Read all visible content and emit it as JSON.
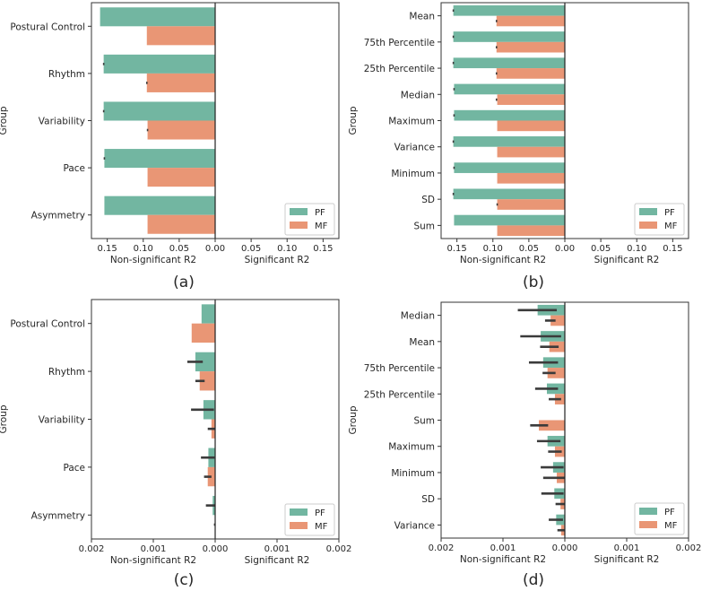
{
  "colors": {
    "PF": "#72b6a1",
    "MF": "#e99675",
    "errorbar": "#3b3b3b"
  },
  "chart_data": [
    {
      "type": "bar",
      "orientation": "horizontal",
      "panel_label": "(a)",
      "ylabel": "Group",
      "xlabel_left": "Non-significant R2",
      "xlabel_right": "Significant R2",
      "xlim": [
        -0.172,
        0.172
      ],
      "xticks": [
        -0.15,
        -0.1,
        -0.05,
        0.0,
        0.05,
        0.1,
        0.15
      ],
      "xtick_labels": [
        "0.15",
        "0.10",
        "0.05",
        "0.00",
        "0.05",
        "0.10",
        "0.15"
      ],
      "legend": {
        "entries": [
          "PF",
          "MF"
        ],
        "placement": "bottom-right"
      },
      "categories": [
        "Postural Control",
        "Rhythm",
        "Variability",
        "Pace",
        "Asymmetry"
      ],
      "series": [
        {
          "name": "PF",
          "side": "non-significant",
          "values": [
            0.16,
            0.155,
            0.155,
            0.154,
            0.154
          ],
          "errors": [
            null,
            [
              0.154,
              0.156
            ],
            [
              0.154,
              0.156
            ],
            [
              0.153,
              0.155
            ],
            null
          ]
        },
        {
          "name": "MF",
          "side": "non-significant",
          "values": [
            0.095,
            0.095,
            0.094,
            0.094,
            0.094
          ],
          "errors": [
            null,
            [
              0.094,
              0.096
            ],
            [
              0.093,
              0.095
            ],
            null,
            null
          ]
        }
      ]
    },
    {
      "type": "bar",
      "orientation": "horizontal",
      "panel_label": "(b)",
      "ylabel": "Group",
      "xlabel_left": "Non-significant R2",
      "xlabel_right": "Significant R2",
      "xlim": [
        -0.172,
        0.172
      ],
      "xticks": [
        -0.15,
        -0.1,
        -0.05,
        0.0,
        0.05,
        0.1,
        0.15
      ],
      "xtick_labels": [
        "0.15",
        "0.10",
        "0.05",
        "0.00",
        "0.05",
        "0.10",
        "0.15"
      ],
      "legend": {
        "entries": [
          "PF",
          "MF"
        ],
        "placement": "bottom-right"
      },
      "categories": [
        "Mean",
        "75th Percentile",
        "25th Percentile",
        "Median",
        "Maximum",
        "Variance",
        "Minimum",
        "SD",
        "Sum"
      ],
      "series": [
        {
          "name": "PF",
          "side": "non-significant",
          "values": [
            0.155,
            0.155,
            0.155,
            0.154,
            0.154,
            0.155,
            0.154,
            0.155,
            0.154
          ],
          "errors": [
            [
              0.154,
              0.156
            ],
            [
              0.154,
              0.156
            ],
            [
              0.154,
              0.156
            ],
            [
              0.153,
              0.155
            ],
            [
              0.153,
              0.155
            ],
            [
              0.154,
              0.156
            ],
            [
              0.153,
              0.155
            ],
            [
              0.154,
              0.156
            ],
            null
          ]
        },
        {
          "name": "MF",
          "side": "non-significant",
          "values": [
            0.095,
            0.095,
            0.095,
            0.094,
            0.094,
            0.094,
            0.094,
            0.094,
            0.094
          ],
          "errors": [
            [
              0.094,
              0.096
            ],
            [
              0.094,
              0.096
            ],
            [
              0.094,
              0.096
            ],
            [
              0.094,
              0.096
            ],
            null,
            null,
            null,
            [
              0.093,
              0.095
            ],
            null
          ]
        }
      ]
    },
    {
      "type": "bar",
      "orientation": "horizontal",
      "panel_label": "(c)",
      "ylabel": "Group",
      "xlabel_left": "Non-significant R2",
      "xlabel_right": "Significant R2",
      "xlim": [
        -0.002,
        0.002
      ],
      "xticks": [
        -0.002,
        -0.001,
        0.0,
        0.001,
        0.002
      ],
      "xtick_labels": [
        "0.002",
        "0.001",
        "0.000",
        "0.001",
        "0.002"
      ],
      "legend": {
        "entries": [
          "PF",
          "MF"
        ],
        "placement": "bottom-right"
      },
      "categories": [
        "Postural Control",
        "Rhythm",
        "Variability",
        "Pace",
        "Asymmetry"
      ],
      "series": [
        {
          "name": "PF",
          "side": "non-significant",
          "values": [
            0.00022,
            0.00032,
            0.00019,
            0.00011,
            4e-05
          ],
          "errors": [
            null,
            [
              0.0002,
              0.00045
            ],
            [
              2e-05,
              0.00039
            ],
            [
              1e-05,
              0.00023
            ],
            [
              0.0,
              0.00015
            ]
          ]
        },
        {
          "name": "MF",
          "side": "non-significant",
          "values": [
            0.00038,
            0.00025,
            6e-05,
            0.00012,
            5e-06
          ],
          "errors": [
            null,
            [
              0.00017,
              0.00032
            ],
            [
              0.0,
              0.00012
            ],
            [
              6e-05,
              0.00018
            ],
            [
              0.0,
              2e-05
            ]
          ]
        }
      ]
    },
    {
      "type": "bar",
      "orientation": "horizontal",
      "panel_label": "(d)",
      "ylabel": "Group",
      "xlabel_left": "Non-significant R2",
      "xlabel_right": "Significant R2",
      "xlim": [
        -0.002,
        0.002
      ],
      "xticks": [
        -0.002,
        -0.001,
        0.0,
        0.001,
        0.002
      ],
      "xtick_labels": [
        "0.002",
        "0.001",
        "0.000",
        "0.001",
        "0.002"
      ],
      "legend": {
        "entries": [
          "PF",
          "MF"
        ],
        "placement": "bottom-right"
      },
      "categories": [
        "Median",
        "Mean",
        "75th Percentile",
        "25th Percentile",
        "Sum",
        "Maximum",
        "Minimum",
        "SD",
        "Variance"
      ],
      "series": [
        {
          "name": "PF",
          "side": "non-significant",
          "values": [
            0.00044,
            0.00039,
            0.00035,
            0.00029,
            5e-06,
            0.00028,
            0.00019,
            0.00017,
            0.00014
          ],
          "errors": [
            [
              0.00013,
              0.00076
            ],
            [
              6e-05,
              0.00072
            ],
            [
              0.00011,
              0.00058
            ],
            [
              0.00011,
              0.00048
            ],
            null,
            [
              7e-05,
              0.00045
            ],
            [
              2e-05,
              0.00039
            ],
            [
              2e-05,
              0.00038
            ],
            [
              3e-05,
              0.00026
            ]
          ]
        },
        {
          "name": "MF",
          "side": "non-significant",
          "values": [
            0.00023,
            0.00025,
            0.00028,
            0.00016,
            0.00042,
            0.00016,
            0.00013,
            7e-05,
            6e-05
          ],
          "errors": [
            [
              0.00015,
              0.00032
            ],
            [
              0.0001,
              0.0004
            ],
            [
              0.00015,
              0.00036
            ],
            [
              6e-05,
              0.00026
            ],
            [
              0.00027,
              0.00056
            ],
            [
              5e-05,
              0.00027
            ],
            [
              0.0,
              0.00035
            ],
            [
              0.0,
              0.00015
            ],
            [
              0.0,
              0.00012
            ]
          ]
        }
      ]
    }
  ]
}
